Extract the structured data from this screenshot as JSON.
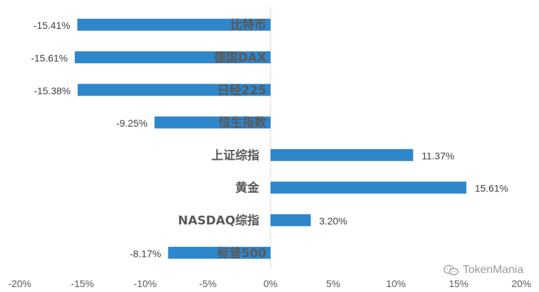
{
  "chart_data": {
    "type": "bar",
    "orientation": "horizontal",
    "categories": [
      "比特币",
      "德国DAX",
      "日经225",
      "恒生指数",
      "上证综指",
      "黄金",
      "NASDAQ综指",
      "标普500"
    ],
    "values": [
      -15.41,
      -15.61,
      -15.38,
      -9.25,
      11.37,
      15.61,
      3.2,
      -8.17
    ],
    "value_labels": [
      "-15.41%",
      "-15.61%",
      "-15.38%",
      "-9.25%",
      "11.37%",
      "15.61%",
      "3.20%",
      "-8.17%"
    ],
    "xlim": [
      -20,
      20
    ],
    "x_ticks": [
      -20,
      -15,
      -10,
      -5,
      0,
      5,
      10,
      15,
      20
    ],
    "x_tick_labels": [
      "-20%",
      "-15%",
      "-10%",
      "-5%",
      "0%",
      "5%",
      "10%",
      "15%",
      "20%"
    ],
    "bar_color": "#2E86CB",
    "grid": false,
    "title": "",
    "xlabel": "",
    "ylabel": ""
  },
  "watermark": {
    "text": "TokenMania",
    "icon": "wechat-icon"
  }
}
